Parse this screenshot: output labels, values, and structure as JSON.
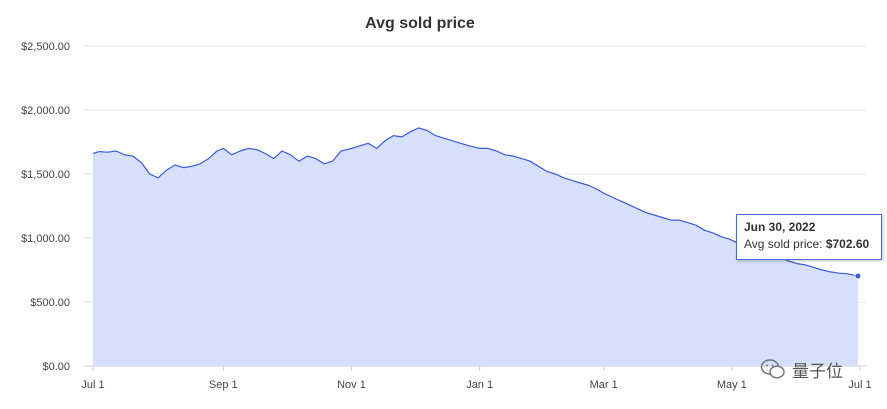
{
  "chart_data": {
    "type": "area",
    "title": "Avg sold price",
    "ylim": [
      0,
      2500
    ],
    "y_ticks": [
      "$0.00",
      "$500.00",
      "$1,000.00",
      "$1,500.00",
      "$2,000.00",
      "$2,500.00"
    ],
    "y_tick_values": [
      0,
      500,
      1000,
      1500,
      2000,
      2500
    ],
    "x_ticks": [
      "Jul 1",
      "Sep 1",
      "Nov 1",
      "Jan 1",
      "Mar 1",
      "May 1",
      "Jul 1"
    ],
    "x_tick_dates": [
      "2021-07-01",
      "2021-09-01",
      "2021-11-01",
      "2022-01-01",
      "2022-03-01",
      "2022-05-01",
      "2022-07-01"
    ],
    "grid": true,
    "line_color": "#3b5bdb",
    "fill_color": "#d6e0fa",
    "series": [
      {
        "points": [
          [
            "2021-07-01",
            1660
          ],
          [
            "2021-07-04",
            1675
          ],
          [
            "2021-07-08",
            1670
          ],
          [
            "2021-07-12",
            1680
          ],
          [
            "2021-07-16",
            1650
          ],
          [
            "2021-07-20",
            1640
          ],
          [
            "2021-07-24",
            1590
          ],
          [
            "2021-07-28",
            1500
          ],
          [
            "2021-08-01",
            1470
          ],
          [
            "2021-08-05",
            1530
          ],
          [
            "2021-08-09",
            1570
          ],
          [
            "2021-08-13",
            1550
          ],
          [
            "2021-08-17",
            1560
          ],
          [
            "2021-08-21",
            1580
          ],
          [
            "2021-08-25",
            1620
          ],
          [
            "2021-08-29",
            1680
          ],
          [
            "2021-09-01",
            1700
          ],
          [
            "2021-09-05",
            1650
          ],
          [
            "2021-09-09",
            1680
          ],
          [
            "2021-09-13",
            1700
          ],
          [
            "2021-09-17",
            1690
          ],
          [
            "2021-09-21",
            1660
          ],
          [
            "2021-09-25",
            1620
          ],
          [
            "2021-09-29",
            1680
          ],
          [
            "2021-10-03",
            1650
          ],
          [
            "2021-10-07",
            1600
          ],
          [
            "2021-10-11",
            1640
          ],
          [
            "2021-10-15",
            1620
          ],
          [
            "2021-10-19",
            1580
          ],
          [
            "2021-10-23",
            1600
          ],
          [
            "2021-10-27",
            1680
          ],
          [
            "2021-11-01",
            1700
          ],
          [
            "2021-11-05",
            1720
          ],
          [
            "2021-11-09",
            1740
          ],
          [
            "2021-11-13",
            1700
          ],
          [
            "2021-11-17",
            1760
          ],
          [
            "2021-11-21",
            1800
          ],
          [
            "2021-11-25",
            1790
          ],
          [
            "2021-11-29",
            1830
          ],
          [
            "2021-12-03",
            1860
          ],
          [
            "2021-12-07",
            1840
          ],
          [
            "2021-12-11",
            1800
          ],
          [
            "2021-12-15",
            1780
          ],
          [
            "2021-12-19",
            1760
          ],
          [
            "2021-12-23",
            1740
          ],
          [
            "2021-12-27",
            1720
          ],
          [
            "2022-01-01",
            1700
          ],
          [
            "2022-01-05",
            1700
          ],
          [
            "2022-01-09",
            1680
          ],
          [
            "2022-01-13",
            1650
          ],
          [
            "2022-01-17",
            1640
          ],
          [
            "2022-01-21",
            1620
          ],
          [
            "2022-01-25",
            1600
          ],
          [
            "2022-01-29",
            1560
          ],
          [
            "2022-02-02",
            1520
          ],
          [
            "2022-02-06",
            1500
          ],
          [
            "2022-02-10",
            1470
          ],
          [
            "2022-02-14",
            1450
          ],
          [
            "2022-02-18",
            1430
          ],
          [
            "2022-02-22",
            1410
          ],
          [
            "2022-02-26",
            1380
          ],
          [
            "2022-03-01",
            1350
          ],
          [
            "2022-03-05",
            1320
          ],
          [
            "2022-03-09",
            1290
          ],
          [
            "2022-03-13",
            1260
          ],
          [
            "2022-03-17",
            1230
          ],
          [
            "2022-03-21",
            1200
          ],
          [
            "2022-03-25",
            1180
          ],
          [
            "2022-03-29",
            1160
          ],
          [
            "2022-04-02",
            1140
          ],
          [
            "2022-04-06",
            1140
          ],
          [
            "2022-04-10",
            1120
          ],
          [
            "2022-04-14",
            1100
          ],
          [
            "2022-04-18",
            1060
          ],
          [
            "2022-04-22",
            1040
          ],
          [
            "2022-04-26",
            1010
          ],
          [
            "2022-04-30",
            990
          ],
          [
            "2022-05-04",
            960
          ],
          [
            "2022-05-08",
            940
          ],
          [
            "2022-05-12",
            930
          ],
          [
            "2022-05-16",
            910
          ],
          [
            "2022-05-20",
            880
          ],
          [
            "2022-05-24",
            850
          ],
          [
            "2022-05-28",
            820
          ],
          [
            "2022-06-01",
            800
          ],
          [
            "2022-06-05",
            790
          ],
          [
            "2022-06-09",
            770
          ],
          [
            "2022-06-13",
            750
          ],
          [
            "2022-06-17",
            735
          ],
          [
            "2022-06-21",
            725
          ],
          [
            "2022-06-25",
            720
          ],
          [
            "2022-06-30",
            702.6
          ]
        ]
      }
    ],
    "tooltip": {
      "date": "Jun 30, 2022",
      "label": "Avg sold price: ",
      "value": "$702.60"
    }
  },
  "watermark": {
    "text": "量子位",
    "icon": "wechat-icon"
  }
}
